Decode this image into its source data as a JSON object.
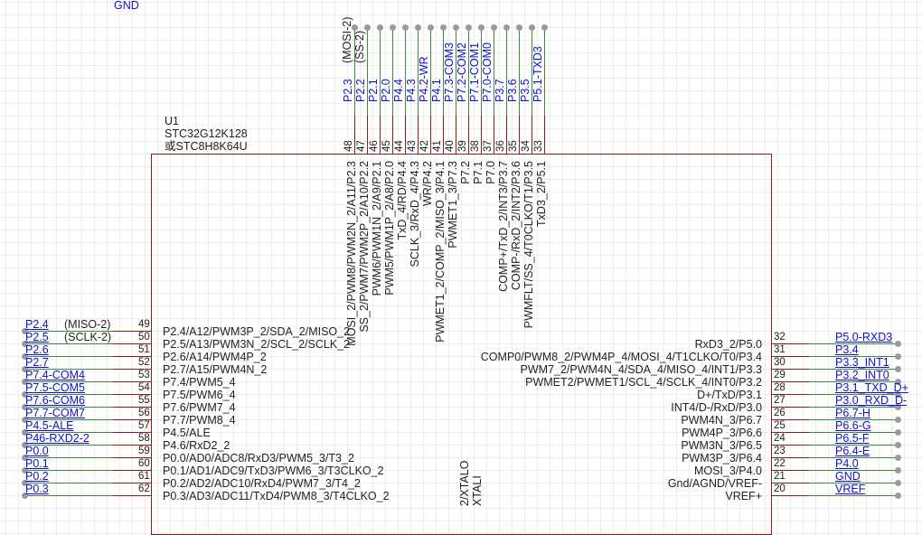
{
  "top_partial_label": "GND",
  "component": {
    "designator": "U1",
    "part": "STC32G12K128",
    "alt_part": "或STC8H8K64U"
  },
  "top_pins": [
    {
      "num": "48",
      "net": "P2.3",
      "extra": "(MOSI-2)",
      "inner": "MOSI_2/PWM8/PWM2N_2/A11/P2.3"
    },
    {
      "num": "47",
      "net": "P2.2",
      "extra": "(SS-2)",
      "inner": "SS_2/PWM7/PWM2P_2/A10/P2.2"
    },
    {
      "num": "46",
      "net": "P2.1",
      "inner": "PWM6/PWM1N_2/A9/P2.1"
    },
    {
      "num": "45",
      "net": "P2.0",
      "inner": "PWM5/PWM1P_2/A8/P2.0"
    },
    {
      "num": "44",
      "net": "P4.4",
      "inner": "TxD_4/RD/P4.4"
    },
    {
      "num": "43",
      "net": "P4.3",
      "inner": "SCLK_3/RxD_4/P4.3"
    },
    {
      "num": "42",
      "net": "P4.2-WR",
      "inner": "WR/P4.2"
    },
    {
      "num": "41",
      "net": "P4.1",
      "inner": "PWMET1_2/COMP_2/MISO_3/P4.1"
    },
    {
      "num": "40",
      "net": "P7.3-COM3",
      "inner": "PWMET1_3/P7.3"
    },
    {
      "num": "39",
      "net": "P7.2-COM2",
      "inner": "P7.2"
    },
    {
      "num": "38",
      "net": "P7.1-COM1",
      "inner": "P7.1"
    },
    {
      "num": "37",
      "net": "P7.0-COM0",
      "inner": "P7.0"
    },
    {
      "num": "36",
      "net": "P3.7",
      "inner": "COMP+/TxD_2/INT3/P3.7"
    },
    {
      "num": "35",
      "net": "P3.6",
      "inner": "COMP-/RxD_2/INT2/P3.6"
    },
    {
      "num": "34",
      "net": "P3.5",
      "inner": "PWMFLT/SS_4/T0CLKO/T1/P3.5"
    },
    {
      "num": "33",
      "net": "P5.1-TXD3",
      "inner": "TxD3_2/P5.1"
    }
  ],
  "left_pins": [
    {
      "num": "49",
      "net": "P2.4",
      "extra": "(MISO-2)",
      "inner": "P2.4/A12/PWM3P_2/SDA_2/MISO_2"
    },
    {
      "num": "50",
      "net": "P2.5",
      "extra": "(SCLK-2)",
      "inner": "P2.5/A13/PWM3N_2/SCL_2/SCLK_2"
    },
    {
      "num": "51",
      "net": "P2.6",
      "inner": "P2.6/A14/PWM4P_2"
    },
    {
      "num": "52",
      "net": "P2.7",
      "inner": "P2.7/A15/PWM4N_2"
    },
    {
      "num": "53",
      "net": "P7.4-COM4",
      "inner": "P7.4/PWM5_4"
    },
    {
      "num": "54",
      "net": "P7.5-COM5",
      "inner": "P7.5/PWM6_4"
    },
    {
      "num": "55",
      "net": "P7.6-COM6",
      "inner": "P7.6/PWM7_4"
    },
    {
      "num": "56",
      "net": "P7.7-COM7",
      "inner": "P7.7/PWM8_4"
    },
    {
      "num": "57",
      "net": "P4.5-ALE",
      "inner": "P4.5/ALE"
    },
    {
      "num": "58",
      "net": "P46-RXD2-2",
      "inner": "P4.6/RxD2_2"
    },
    {
      "num": "59",
      "net": "P0.0",
      "inner": "P0.0/AD0/ADC8/RxD3/PWM5_3/T3_2"
    },
    {
      "num": "60",
      "net": "P0.1",
      "inner": "P0.1/AD1/ADC9/TxD3/PWM6_3/T3CLKO_2"
    },
    {
      "num": "61",
      "net": "P0.2",
      "inner": "P0.2/AD2/ADC10/RxD4/PWM7_3/T4_2"
    },
    {
      "num": "62",
      "net": "P0.3",
      "inner": "P0.3/AD3/ADC11/TxD4/PWM8_3/T4CLKO_2"
    }
  ],
  "right_pins": [
    {
      "num": "32",
      "net": "P5.0-RXD3",
      "inner": "RxD3_2/P5.0"
    },
    {
      "num": "31",
      "net": "P3.4",
      "inner": "COMP0/PWM8_2/PWM4P_4/MOSI_4/T1CLKO/T0/P3.4"
    },
    {
      "num": "30",
      "net": "P3.3_INT1",
      "inner": "PWM7_2/PWM4N_4/SDA_4/MISO_4/INT1/P3.3"
    },
    {
      "num": "29",
      "net": "P3.2_INT0",
      "inner": "PWMET2/PWMET1/SCL_4/SCLK_4/INT0/P3.2"
    },
    {
      "num": "28",
      "net": "P3.1_TXD_D+",
      "inner": "D+/TxD/P3.1"
    },
    {
      "num": "27",
      "net": "P3.0_RXD_D-",
      "inner": "INT4/D-/RxD/P3.0"
    },
    {
      "num": "26",
      "net": "P6.7-H",
      "inner": "PWM4N_3/P6.7"
    },
    {
      "num": "25",
      "net": "P6.6-G",
      "inner": "PWM4P_3/P6.6"
    },
    {
      "num": "24",
      "net": "P6.5-F",
      "inner": "PWM3N_3/P6.5"
    },
    {
      "num": "23",
      "net": "P6.4-E",
      "inner": "PWM3P_3/P6.4"
    },
    {
      "num": "22",
      "net": "P4.0",
      "inner": "MOSI_3/P4.0"
    },
    {
      "num": "21",
      "net": "GND",
      "inner": "Gnd/AGND/VREF-"
    },
    {
      "num": "20",
      "net": "VREF",
      "inner": "VREF+"
    }
  ],
  "bottom_inner_labels": [
    "2/XTALO",
    "XTALI"
  ],
  "colors": {
    "net": "#1010d0",
    "wire": "#3c8c3c",
    "pin": "#8a1c1c",
    "body": "#8a1c1c"
  }
}
